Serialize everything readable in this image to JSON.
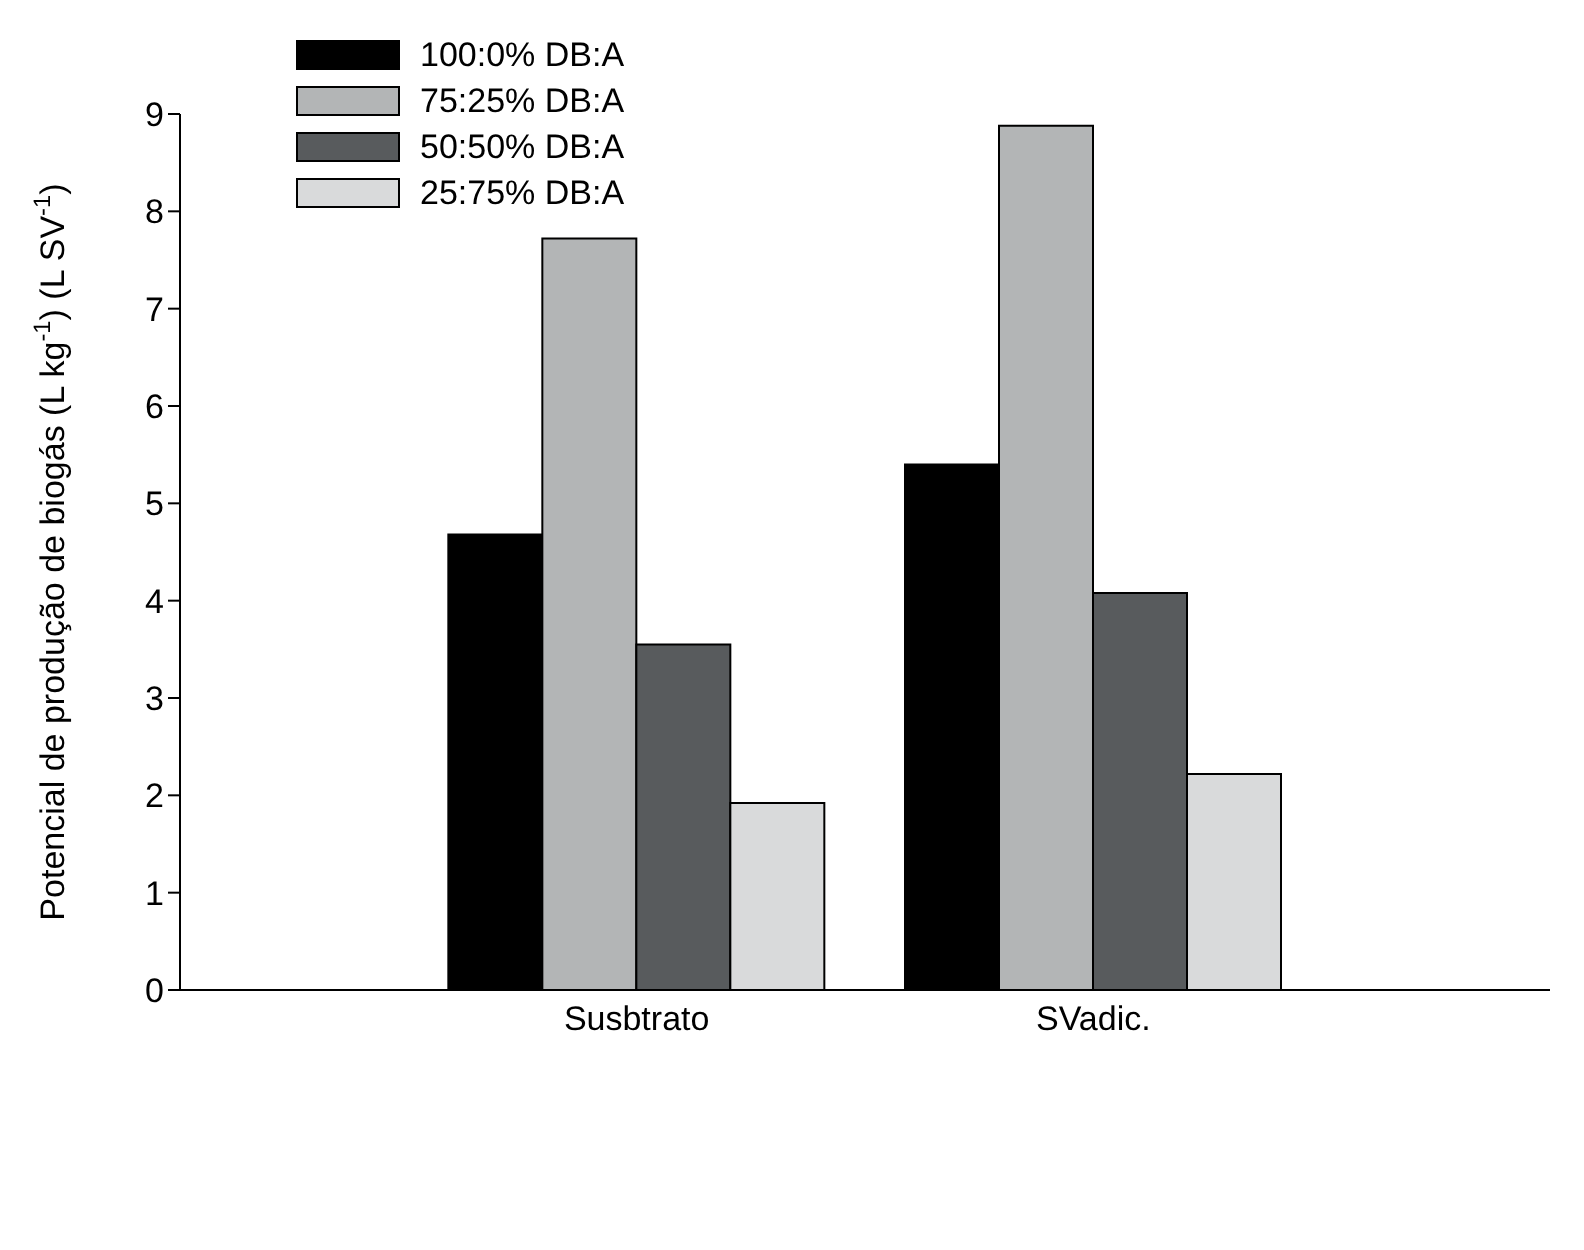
{
  "chart_data": {
    "type": "bar",
    "ylabel": "Potencial de produção de biogás (L kg$^{-1}$) (L SV$^{-1}$)",
    "categories": [
      "Susbtrato",
      "SVadic."
    ],
    "series": [
      {
        "name": "100:0% DB:A",
        "color": "#000000",
        "values": [
          4.68,
          5.4
        ]
      },
      {
        "name": "75:25% DB:A",
        "color": "#b3b5b6",
        "values": [
          7.72,
          8.88
        ]
      },
      {
        "name": "50:50% DB:A",
        "color": "#585b5d",
        "values": [
          3.55,
          4.08
        ]
      },
      {
        "name": "25:75% DB:A",
        "color": "#d9dadb",
        "values": [
          1.92,
          2.22
        ]
      }
    ],
    "ylim": [
      0,
      9
    ],
    "yticks": [
      0,
      1,
      2,
      3,
      4,
      5,
      6,
      7,
      8,
      9
    ],
    "grid": false,
    "legend": "top left"
  }
}
